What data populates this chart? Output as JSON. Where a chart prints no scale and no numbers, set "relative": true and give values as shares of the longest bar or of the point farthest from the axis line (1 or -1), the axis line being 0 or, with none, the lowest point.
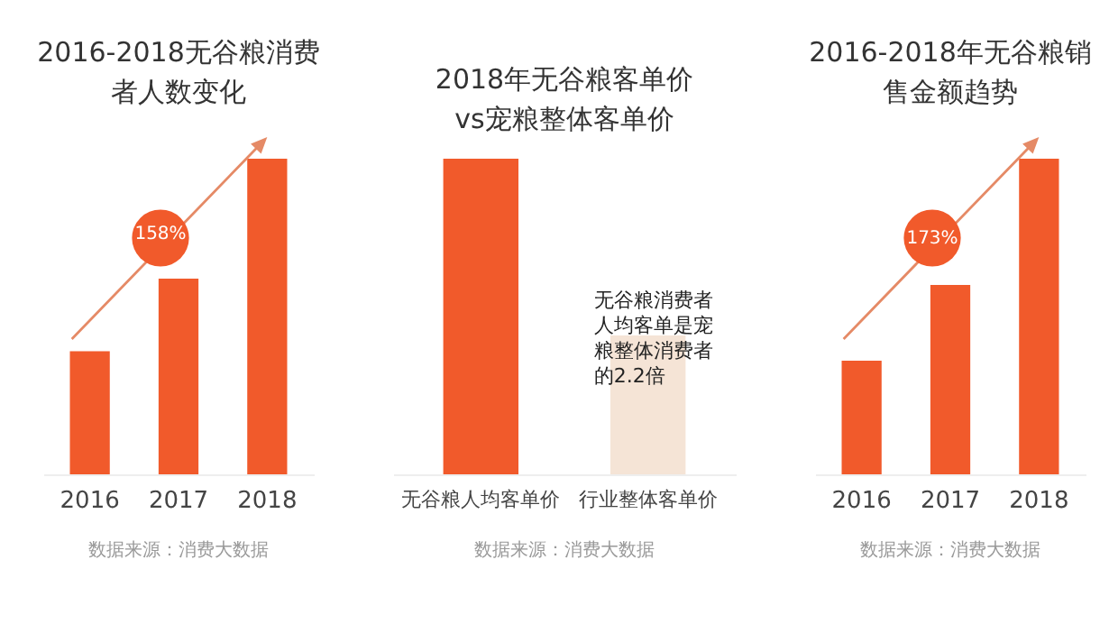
{
  "chart_data": [
    {
      "type": "bar",
      "title": "2016-2018无谷粮消费者人数变化",
      "categories": [
        "2016",
        "2017",
        "2018"
      ],
      "relative": true,
      "values": [
        0.39,
        0.62,
        1
      ],
      "color": "#f15a2b",
      "annotations": [
        "158%",
        "数据来源：消费大数据"
      ]
    },
    {
      "type": "bar",
      "title": "2018年无谷粮客单价vs宠粮整体客单价",
      "categories": [
        "无谷粮人均客单价",
        "行业整体客单价"
      ],
      "relative": true,
      "values": [
        1,
        0.44
      ],
      "colors": [
        "#f15a2b",
        "#f5e4d6"
      ],
      "annotations": [
        "无谷粮消费者人均客单是宠粮整体消费者的2.2倍",
        "数据来源：消费大数据"
      ]
    },
    {
      "type": "bar",
      "title": "2016-2018年无谷粮销售金额趋势",
      "categories": [
        "2016",
        "2017",
        "2018"
      ],
      "relative": true,
      "values": [
        0.36,
        0.6,
        1
      ],
      "color": "#f15a2b",
      "annotations": [
        "173%",
        "数据来源：消费大数据"
      ]
    }
  ]
}
